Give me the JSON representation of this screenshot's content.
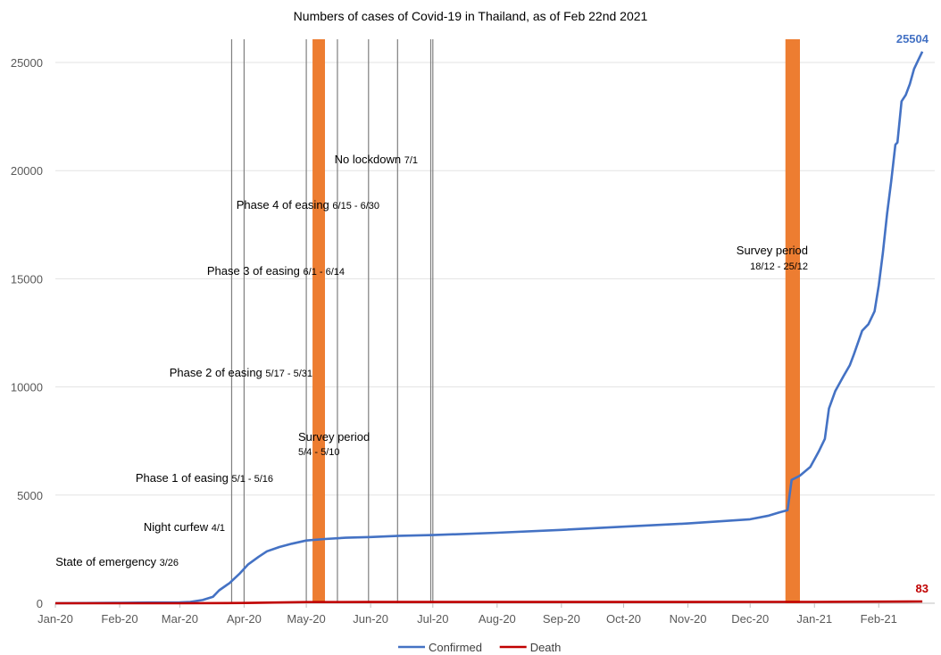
{
  "chart_data": {
    "type": "line",
    "title": "Numbers of cases of Covid-19 in Thailand, as of Feb 22nd 2021",
    "xlabel": "",
    "ylabel": "",
    "ylim": [
      0,
      25500
    ],
    "yticks": [
      "0",
      "5000",
      "10000",
      "15000",
      "20000",
      "25000"
    ],
    "xticks": [
      "Jan-20",
      "Feb-20",
      "Mar-20",
      "Apr-20",
      "May-20",
      "Jun-20",
      "Jul-20",
      "Aug-20",
      "Sep-20",
      "Oct-20",
      "Nov-20",
      "Dec-20",
      "Jan-21",
      "Feb-21"
    ],
    "grid": "horizontal",
    "legend": "bottom",
    "series": [
      {
        "name": "Confirmed",
        "color": "#4472C4",
        "end_label": "25504",
        "points": [
          [
            "2020-01-01",
            0
          ],
          [
            "2020-02-01",
            20
          ],
          [
            "2020-02-15",
            35
          ],
          [
            "2020-03-01",
            42
          ],
          [
            "2020-03-06",
            60
          ],
          [
            "2020-03-12",
            150
          ],
          [
            "2020-03-17",
            300
          ],
          [
            "2020-03-20",
            600
          ],
          [
            "2020-03-25",
            934
          ],
          [
            "2020-03-30",
            1388
          ],
          [
            "2020-04-03",
            1800
          ],
          [
            "2020-04-08",
            2150
          ],
          [
            "2020-04-12",
            2400
          ],
          [
            "2020-04-18",
            2600
          ],
          [
            "2020-04-24",
            2750
          ],
          [
            "2020-05-01",
            2900
          ],
          [
            "2020-05-10",
            2970
          ],
          [
            "2020-05-20",
            3030
          ],
          [
            "2020-06-01",
            3060
          ],
          [
            "2020-06-15",
            3120
          ],
          [
            "2020-07-01",
            3150
          ],
          [
            "2020-08-01",
            3260
          ],
          [
            "2020-09-01",
            3390
          ],
          [
            "2020-10-01",
            3540
          ],
          [
            "2020-11-01",
            3690
          ],
          [
            "2020-12-01",
            3880
          ],
          [
            "2020-12-10",
            4050
          ],
          [
            "2020-12-15",
            4200
          ],
          [
            "2020-12-19",
            4300
          ],
          [
            "2020-12-21",
            5700
          ],
          [
            "2020-12-25",
            5900
          ],
          [
            "2020-12-30",
            6300
          ],
          [
            "2021-01-03",
            7000
          ],
          [
            "2021-01-06",
            7600
          ],
          [
            "2021-01-08",
            9000
          ],
          [
            "2021-01-11",
            9800
          ],
          [
            "2021-01-15",
            10500
          ],
          [
            "2021-01-18",
            11000
          ],
          [
            "2021-01-20",
            11500
          ],
          [
            "2021-01-24",
            12600
          ],
          [
            "2021-01-27",
            12900
          ],
          [
            "2021-01-30",
            13500
          ],
          [
            "2021-02-01",
            14700
          ],
          [
            "2021-02-03",
            16200
          ],
          [
            "2021-02-05",
            18000
          ],
          [
            "2021-02-07",
            19500
          ],
          [
            "2021-02-09",
            21200
          ],
          [
            "2021-02-10",
            21300
          ],
          [
            "2021-02-12",
            23200
          ],
          [
            "2021-02-14",
            23500
          ],
          [
            "2021-02-16",
            24000
          ],
          [
            "2021-02-18",
            24700
          ],
          [
            "2021-02-20",
            25100
          ],
          [
            "2021-02-22",
            25504
          ]
        ]
      },
      {
        "name": "Death",
        "color": "#C00000",
        "end_label": "83",
        "points": [
          [
            "2020-01-01",
            0
          ],
          [
            "2020-03-01",
            1
          ],
          [
            "2020-04-01",
            12
          ],
          [
            "2020-05-01",
            54
          ],
          [
            "2020-06-01",
            57
          ],
          [
            "2020-09-01",
            59
          ],
          [
            "2020-12-01",
            60
          ],
          [
            "2021-01-01",
            60
          ],
          [
            "2021-02-22",
            83
          ]
        ]
      }
    ],
    "vertical_lines": [
      "2020-03-26",
      "2020-04-01",
      "2020-05-01",
      "2020-05-16",
      "2020-05-31",
      "2020-06-14",
      "2020-06-30",
      "2020-07-01"
    ],
    "shaded_periods": [
      {
        "label": "Survey period",
        "dates": "5/4 - 5/10",
        "start": "2020-05-04",
        "end": "2020-05-10",
        "color": "#ED7D31"
      },
      {
        "label": "Survey period",
        "dates": "18/12 - 25/12",
        "start": "2020-12-18",
        "end": "2020-12-25",
        "color": "#ED7D31"
      }
    ],
    "annotations": [
      {
        "label": "State of emergency",
        "dates": "3/26",
        "y": 1950
      },
      {
        "label": "Night curfew",
        "dates": "4/1",
        "y": 3500
      },
      {
        "label": "Phase 1 of easing",
        "dates": "5/1 - 5/16",
        "y": 5800
      },
      {
        "label": "Phase 2 of easing",
        "dates": "5/17 - 5/31",
        "y": 10700
      },
      {
        "label": "Phase 3 of easing",
        "dates": "6/1 - 6/14",
        "y": 15300
      },
      {
        "label": "Phase 4 of easing",
        "dates": "6/15 - 6/30",
        "y": 18750
      },
      {
        "label": "No lockdown",
        "dates": "7/1",
        "y": 20600
      }
    ]
  }
}
